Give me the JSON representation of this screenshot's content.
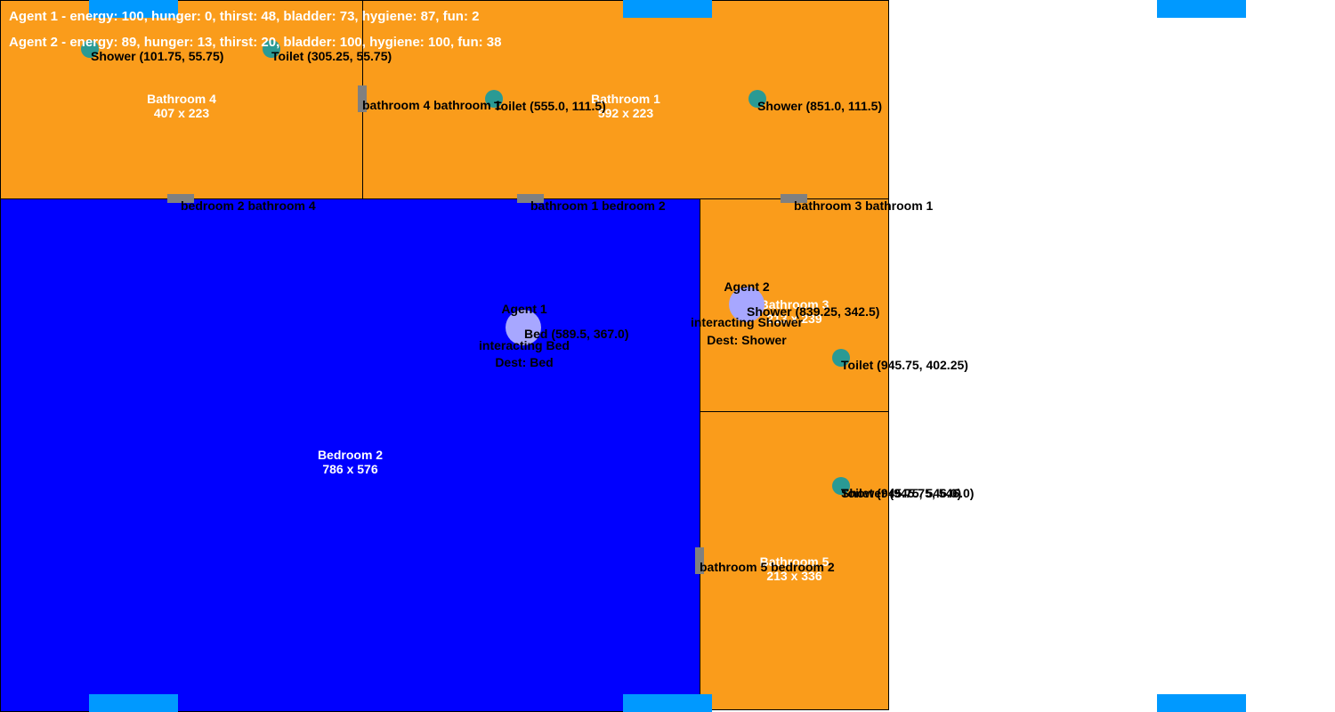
{
  "rooms": {
    "bathroom4": {
      "name": "Bathroom 4",
      "size": "407 x 223"
    },
    "bathroom1": {
      "name": "Bathroom 1",
      "size": "592 x 223"
    },
    "bedroom2": {
      "name": "Bedroom 2",
      "size": "786 x 576"
    },
    "bathroom3": {
      "name": "Bathroom 3",
      "size": "213 x 239"
    },
    "bathroom5": {
      "name": "Bathroom 5",
      "size": "213 x 336"
    }
  },
  "doors": {
    "bathroom4_bathroom1": "bathroom 4 bathroom 1",
    "bedroom2_bathroom4": "bedroom 2 bathroom 4",
    "bathroom1_bedroom2": "bathroom 1 bedroom 2",
    "bathroom3_bathroom1": "bathroom 3 bathroom 1",
    "bathroom5_bedroom2": "bathroom 5 bedroom 2"
  },
  "objects": {
    "shower_b4": "Shower (101.75, 55.75)",
    "toilet_b4": "Toilet (305.25, 55.75)",
    "toilet_b1": "Toilet (555.0, 111.5)",
    "shower_b1": "Shower (851.0, 111.5)",
    "bed_b2": "Bed (589.5, 367.0)",
    "shower_b3": "Shower (839.25, 342.5)",
    "toilet_b3": "Toilet (945.75, 402.25)",
    "toilet_b5": "Toilet (945.75, 546.0)",
    "shower_b5": "Shower (945.75, 546.0)"
  },
  "agents": {
    "agent1": {
      "name": "Agent 1",
      "action": "interacting Bed",
      "dest": "Dest: Bed"
    },
    "agent2": {
      "name": "Agent 2",
      "action": "interacting Shower",
      "dest": "Dest: Shower"
    }
  },
  "status": {
    "agent1": "Agent 1 - energy: 100, hunger: 0, thirst: 48, bladder: 73, hygiene: 87, fun: 2",
    "agent2": "Agent 2 - energy: 89, hunger: 13, thirst: 20, bladder: 100, hygiene: 100, fun: 38"
  },
  "colors": {
    "bathroom": "#fa9c1b",
    "bedroom": "#0000ff",
    "window": "#0099ff",
    "door": "#808080",
    "object": "#2a9a94",
    "agent": "#a7a7ff"
  }
}
